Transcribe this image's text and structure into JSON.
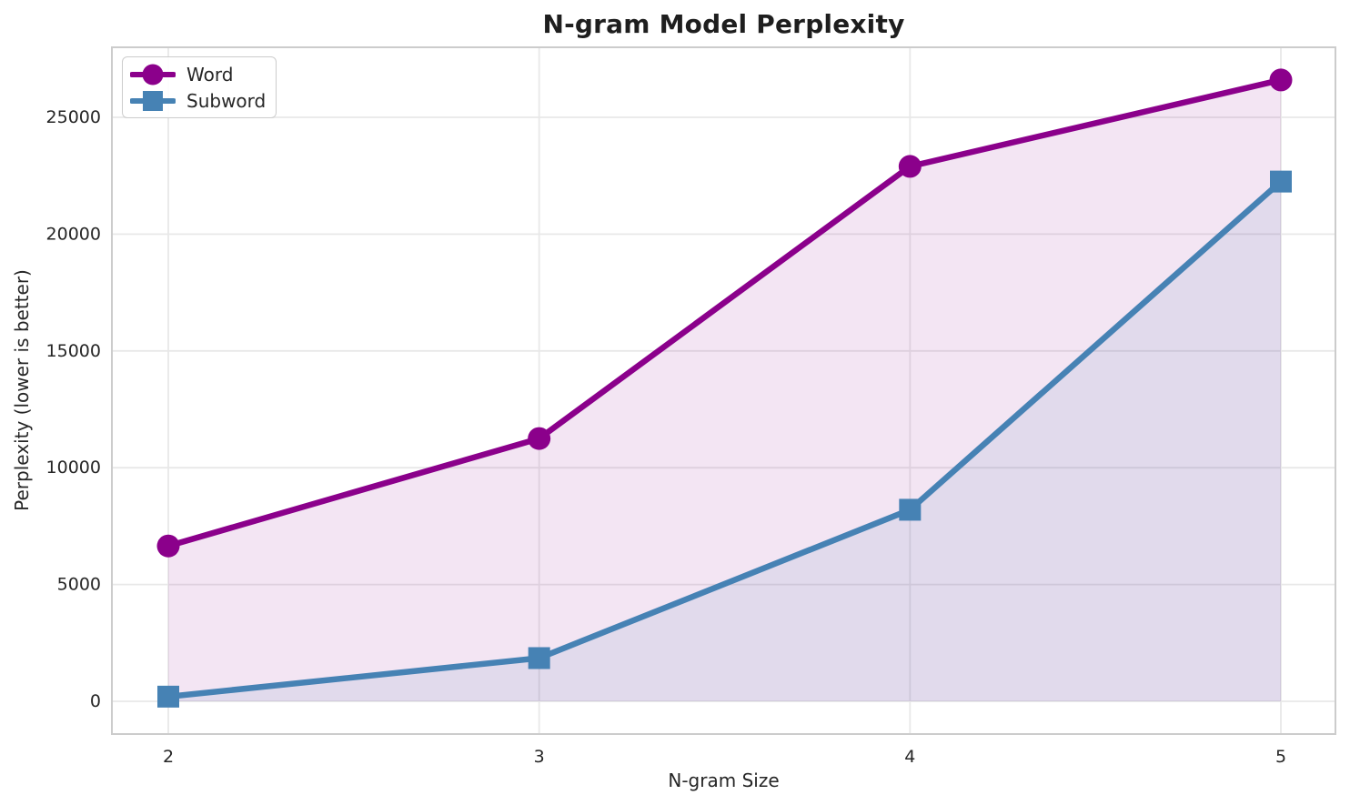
{
  "figure": {
    "background": "#ffffff",
    "grid_color": "#e8e8e8",
    "spine_color": "#cccccc",
    "tick_color": "#262626"
  },
  "chart_data": {
    "type": "line",
    "title": "N-gram Model Perplexity",
    "xlabel": "N-gram Size",
    "ylabel": "Perplexity (lower is better)",
    "x": [
      2,
      3,
      4,
      5
    ],
    "xticklabels": [
      "2",
      "3",
      "4",
      "5"
    ],
    "yticks": [
      0,
      5000,
      10000,
      15000,
      20000,
      25000
    ],
    "yticklabels": [
      "0",
      "5000",
      "10000",
      "15000",
      "20000",
      "25000"
    ],
    "xlim": [
      1.85,
      5.15
    ],
    "ylim": [
      -1350,
      28000
    ],
    "grid": true,
    "legend_position": "upper left",
    "series": [
      {
        "name": "Word",
        "marker": "circle",
        "color": "#8B008B",
        "fill_alpha": 0.1,
        "fill_to_zero": true,
        "values": [
          6650,
          11250,
          22900,
          26600
        ]
      },
      {
        "name": "Subword",
        "marker": "square",
        "color": "#4682B4",
        "fill_alpha": 0.1,
        "fill_to_zero": true,
        "values": [
          200,
          1850,
          8200,
          22250
        ]
      }
    ]
  }
}
